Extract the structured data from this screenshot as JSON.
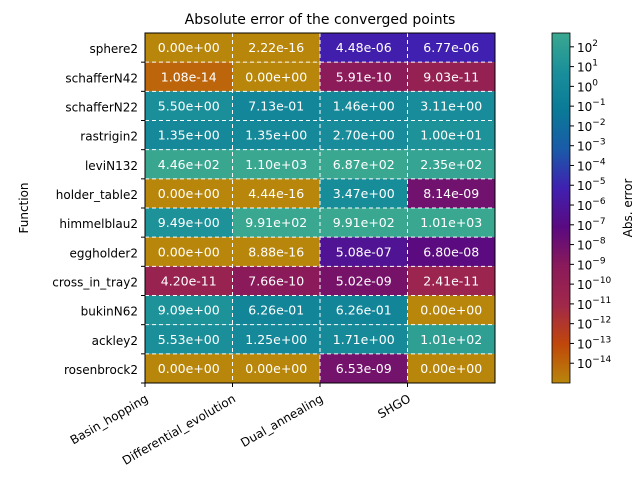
{
  "chart_data": {
    "type": "heatmap",
    "title": "Absolute error of the converged points",
    "xlabel": "",
    "ylabel": "Function",
    "colorbar_label": "Abs. error",
    "colorbar_scale": "log",
    "colorbar_range": [
      1e-15,
      500
    ],
    "colorbar_ticks": [
      {
        "exp": 2
      },
      {
        "exp": 1
      },
      {
        "exp": 0
      },
      {
        "exp": -1
      },
      {
        "exp": -2
      },
      {
        "exp": -3
      },
      {
        "exp": -4
      },
      {
        "exp": -5
      },
      {
        "exp": -6
      },
      {
        "exp": -7
      },
      {
        "exp": -8
      },
      {
        "exp": -9
      },
      {
        "exp": -10
      },
      {
        "exp": -11
      },
      {
        "exp": -12
      },
      {
        "exp": -13
      },
      {
        "exp": -14
      }
    ],
    "colorbar_tick_base": "10",
    "colormap": [
      "#b8860b",
      "#c0470a",
      "#a0284a",
      "#8a1a5a",
      "#5a0a80",
      "#4020b0",
      "#1a5aa8",
      "#0a7a98",
      "#1a8f9a",
      "#3aa890"
    ],
    "zero_color": "#b8860b",
    "grid": true,
    "grid_style": "dashed",
    "x_categories": [
      "Basin_hopping",
      "Differential_evolution",
      "Dual_annealing",
      "SHGO"
    ],
    "y_categories": [
      "sphere2",
      "schafferN42",
      "schafferN22",
      "rastrigin2",
      "leviN132",
      "holder_table2",
      "himmelblau2",
      "eggholder2",
      "cross_in_tray2",
      "bukinN62",
      "ackley2",
      "rosenbrock2"
    ],
    "cells": [
      [
        {
          "value": 0,
          "label": "0.00e+00"
        },
        {
          "value": 2.22e-16,
          "label": "2.22e-16"
        },
        {
          "value": 4.48e-06,
          "label": "4.48e-06"
        },
        {
          "value": 6.77e-06,
          "label": "6.77e-06"
        }
      ],
      [
        {
          "value": 1.08e-14,
          "label": "1.08e-14"
        },
        {
          "value": 0,
          "label": "0.00e+00"
        },
        {
          "value": 5.91e-10,
          "label": "5.91e-10"
        },
        {
          "value": 9.03e-11,
          "label": "9.03e-11"
        }
      ],
      [
        {
          "value": 5.5,
          "label": "5.50e+00"
        },
        {
          "value": 0.713,
          "label": "7.13e-01"
        },
        {
          "value": 1.46,
          "label": "1.46e+00"
        },
        {
          "value": 3.11,
          "label": "3.11e+00"
        }
      ],
      [
        {
          "value": 1.35,
          "label": "1.35e+00"
        },
        {
          "value": 1.35,
          "label": "1.35e+00"
        },
        {
          "value": 2.7,
          "label": "2.70e+00"
        },
        {
          "value": 10.0,
          "label": "1.00e+01"
        }
      ],
      [
        {
          "value": 446,
          "label": "4.46e+02"
        },
        {
          "value": 1100,
          "label": "1.10e+03"
        },
        {
          "value": 687,
          "label": "6.87e+02"
        },
        {
          "value": 235,
          "label": "2.35e+02"
        }
      ],
      [
        {
          "value": 0,
          "label": "0.00e+00"
        },
        {
          "value": 4.44e-16,
          "label": "4.44e-16"
        },
        {
          "value": 3.47,
          "label": "3.47e+00"
        },
        {
          "value": 8.14e-09,
          "label": "8.14e-09"
        }
      ],
      [
        {
          "value": 9.49,
          "label": "9.49e+00"
        },
        {
          "value": 991,
          "label": "9.91e+02"
        },
        {
          "value": 991,
          "label": "9.91e+02"
        },
        {
          "value": 1010,
          "label": "1.01e+03"
        }
      ],
      [
        {
          "value": 0,
          "label": "0.00e+00"
        },
        {
          "value": 8.88e-16,
          "label": "8.88e-16"
        },
        {
          "value": 5.08e-07,
          "label": "5.08e-07"
        },
        {
          "value": 6.8e-08,
          "label": "6.80e-08"
        }
      ],
      [
        {
          "value": 4.2e-11,
          "label": "4.20e-11"
        },
        {
          "value": 7.66e-10,
          "label": "7.66e-10"
        },
        {
          "value": 5.02e-09,
          "label": "5.02e-09"
        },
        {
          "value": 2.41e-11,
          "label": "2.41e-11"
        }
      ],
      [
        {
          "value": 9.09,
          "label": "9.09e+00"
        },
        {
          "value": 0.626,
          "label": "6.26e-01"
        },
        {
          "value": 0.626,
          "label": "6.26e-01"
        },
        {
          "value": 0,
          "label": "0.00e+00"
        }
      ],
      [
        {
          "value": 5.53,
          "label": "5.53e+00"
        },
        {
          "value": 1.25,
          "label": "1.25e+00"
        },
        {
          "value": 1.71,
          "label": "1.71e+00"
        },
        {
          "value": 101,
          "label": "1.01e+02"
        }
      ],
      [
        {
          "value": 0,
          "label": "0.00e+00"
        },
        {
          "value": 0,
          "label": "0.00e+00"
        },
        {
          "value": 6.53e-09,
          "label": "6.53e-09"
        },
        {
          "value": 0,
          "label": "0.00e+00"
        }
      ]
    ]
  }
}
